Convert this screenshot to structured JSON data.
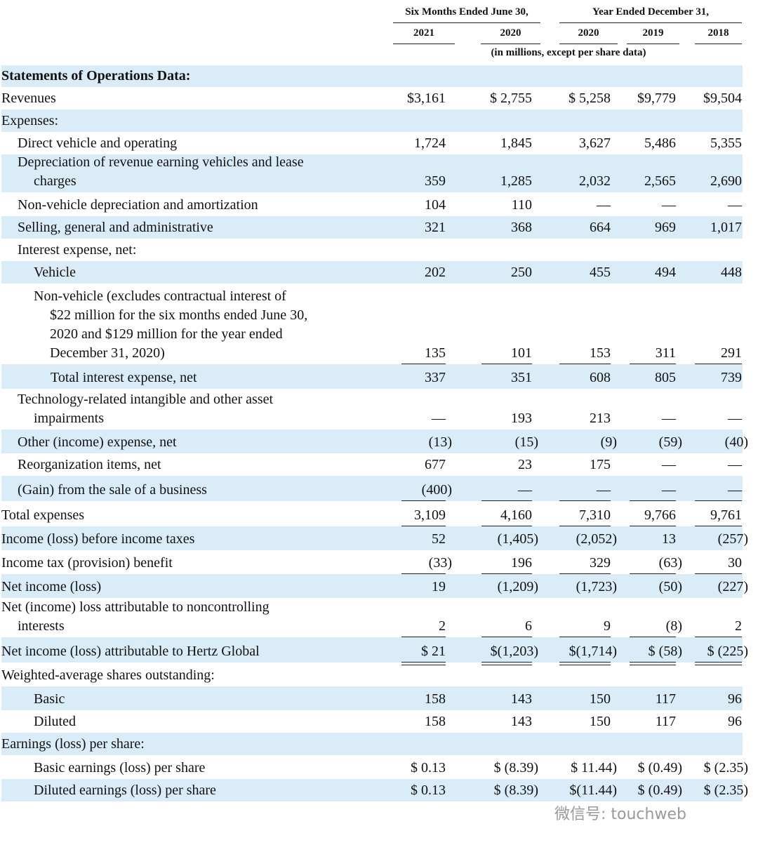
{
  "header": {
    "groups": [
      "Six Months Ended June 30,",
      "Year Ended December 31,"
    ],
    "years": [
      "2021",
      "2020",
      "2020",
      "2019",
      "2018"
    ],
    "note": "(in millions, except per share data)"
  },
  "table": {
    "rows": [
      {
        "label": [
          "Statements of Operations Data:"
        ]
      },
      {
        "label": [
          "Revenues"
        ],
        "values": [
          "$3,161",
          "$ 2,755",
          "$ 5,258",
          "$9,779",
          "$9,504"
        ]
      },
      {
        "label": [
          "Expenses:"
        ]
      },
      {
        "label": [
          "Direct vehicle and operating"
        ],
        "values": [
          "1,724",
          "1,845",
          "3,627",
          "5,486",
          "5,355"
        ]
      },
      {
        "label": [
          "Depreciation of revenue earning vehicles and lease",
          "charges"
        ],
        "values": [
          "359",
          "1,285",
          "2,032",
          "2,565",
          "2,690"
        ]
      },
      {
        "label": [
          "Non-vehicle depreciation and amortization"
        ],
        "values": [
          "104",
          "110",
          "—",
          "—",
          "—"
        ]
      },
      {
        "label": [
          "Selling, general and administrative"
        ],
        "values": [
          "321",
          "368",
          "664",
          "969",
          "1,017"
        ]
      },
      {
        "label": [
          "Interest expense, net:"
        ]
      },
      {
        "label": [
          "Vehicle"
        ],
        "values": [
          "202",
          "250",
          "455",
          "494",
          "448"
        ]
      },
      {
        "label": [
          "Non-vehicle (excludes contractual interest of",
          "$22 million for the six months ended June 30,",
          "2020 and $129 million for the year ended",
          "December 31, 2020)"
        ],
        "values": [
          "135",
          "101",
          "153",
          "311",
          "291"
        ]
      },
      {
        "label": [
          "Total interest expense, net"
        ],
        "values": [
          "337",
          "351",
          "608",
          "805",
          "739"
        ]
      },
      {
        "label": [
          "Technology-related intangible and other asset",
          "impairments"
        ],
        "values": [
          "—",
          "193",
          "213",
          "—",
          "—"
        ]
      },
      {
        "label": [
          "Other (income) expense, net"
        ],
        "values": [
          "(13)",
          "(15)",
          "(9)",
          "(59)",
          "(40)"
        ]
      },
      {
        "label": [
          "Reorganization items, net"
        ],
        "values": [
          "677",
          "23",
          "175",
          "—",
          "—"
        ]
      },
      {
        "label": [
          "(Gain) from the sale of a business"
        ],
        "values": [
          "(400)",
          "—",
          "—",
          "—",
          "—"
        ]
      },
      {
        "label": [
          "Total expenses"
        ],
        "values": [
          "3,109",
          "4,160",
          "7,310",
          "9,766",
          "9,761"
        ]
      },
      {
        "label": [
          "Income (loss) before income taxes"
        ],
        "values": [
          "52",
          "(1,405)",
          "(2,052)",
          "13",
          "(257)"
        ]
      },
      {
        "label": [
          "Income tax (provision) benefit"
        ],
        "values": [
          "(33)",
          "196",
          "329",
          "(63)",
          "30"
        ]
      },
      {
        "label": [
          "Net income (loss)"
        ],
        "values": [
          "19",
          "(1,209)",
          "(1,723)",
          "(50)",
          "(227)"
        ]
      },
      {
        "label": [
          "Net (income) loss attributable to noncontrolling",
          "interests"
        ],
        "values": [
          "2",
          "6",
          "9",
          "(8)",
          "2"
        ]
      },
      {
        "label": [
          "Net income (loss) attributable to Hertz Global"
        ],
        "values": [
          "$ 21",
          "$(1,203)",
          "$(1,714)",
          "$ (58)",
          "$ (225)"
        ]
      },
      {
        "label": [
          "Weighted-average shares outstanding:"
        ]
      },
      {
        "label": [
          "Basic"
        ],
        "values": [
          "158",
          "143",
          "150",
          "117",
          "96"
        ]
      },
      {
        "label": [
          "Diluted"
        ],
        "values": [
          "158",
          "143",
          "150",
          "117",
          "96"
        ]
      },
      {
        "label": [
          "Earnings (loss) per share:"
        ]
      },
      {
        "label": [
          "Basic earnings (loss) per share"
        ],
        "values": [
          "$ 0.13",
          "$ (8.39)",
          "$ 11.44)",
          "$ (0.49)",
          "$ (2.35)"
        ]
      },
      {
        "label": [
          "Diluted earnings (loss) per share"
        ],
        "values": [
          "$ 0.13",
          "$ (8.39)",
          "$(11.44)",
          "$ (0.49)",
          "$ (2.35)"
        ]
      }
    ]
  },
  "watermark": "微信号: touchweb"
}
